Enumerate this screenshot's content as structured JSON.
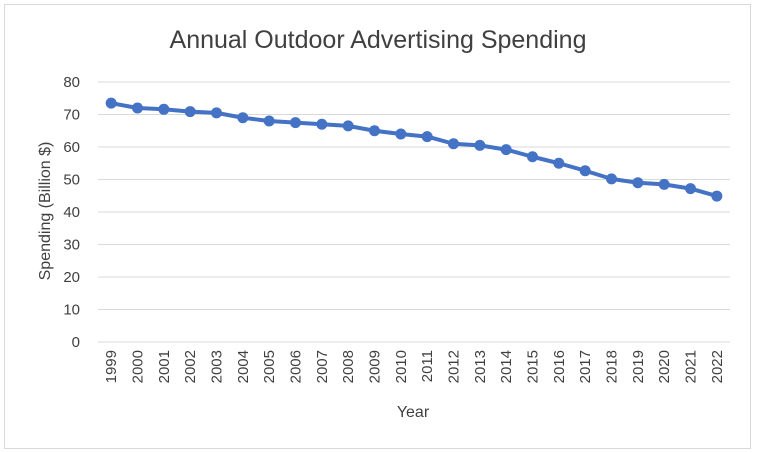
{
  "chart_data": {
    "type": "line",
    "title": "Annual Outdoor Advertising Spending",
    "xlabel": "Year",
    "ylabel": "Spending (Billion $)",
    "categories": [
      "1999",
      "2000",
      "2001",
      "2002",
      "2003",
      "2004",
      "2005",
      "2006",
      "2007",
      "2008",
      "2009",
      "2010",
      "2011",
      "2012",
      "2013",
      "2014",
      "2015",
      "2016",
      "2017",
      "2018",
      "2019",
      "2020",
      "2021",
      "2022"
    ],
    "series": [
      {
        "values": [
          73.5,
          72.0,
          71.6,
          70.9,
          70.5,
          69.0,
          68.0,
          67.5,
          67.0,
          66.5,
          65.0,
          64.0,
          63.2,
          61.0,
          60.5,
          59.2,
          57.0,
          55.0,
          52.7,
          50.2,
          49.0,
          48.5,
          47.2,
          44.9
        ]
      }
    ],
    "yticks": [
      0,
      10,
      20,
      30,
      40,
      50,
      60,
      70,
      80
    ],
    "ylim": [
      0,
      80
    ],
    "grid": "horizontal",
    "legend": "none",
    "colors": {
      "line": "#4472c4",
      "grid": "#d9d9d9",
      "text": "#404040"
    }
  }
}
